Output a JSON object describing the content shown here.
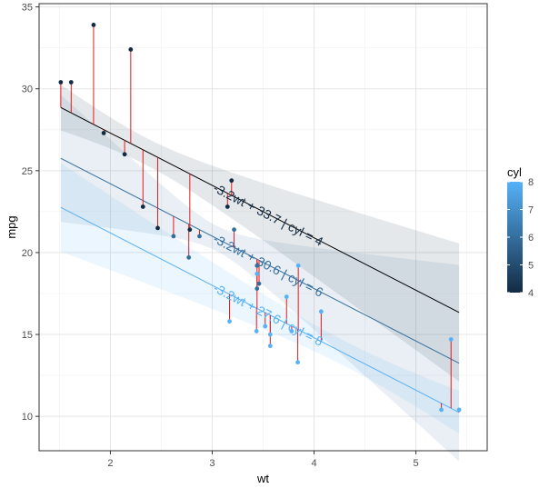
{
  "chart_data": {
    "type": "scatter",
    "title": "",
    "xlabel": "wt",
    "ylabel": "mpg",
    "xlim": [
      1.3,
      5.7
    ],
    "ylim": [
      7.9,
      35.2
    ],
    "x_ticks": [
      2,
      3,
      4,
      5
    ],
    "y_ticks": [
      10,
      15,
      20,
      25,
      30,
      35
    ],
    "grid": true,
    "legend": {
      "title": "cyl",
      "placement": "right",
      "type": "colorbar",
      "range": [
        4,
        8
      ],
      "ticks": [
        4,
        5,
        6,
        7,
        8
      ],
      "color_low": "#132B43",
      "color_high": "#56B1F7"
    },
    "points": [
      {
        "wt": 2.62,
        "mpg": 21.0,
        "cyl": 6
      },
      {
        "wt": 2.875,
        "mpg": 21.0,
        "cyl": 6
      },
      {
        "wt": 2.32,
        "mpg": 22.8,
        "cyl": 4
      },
      {
        "wt": 3.215,
        "mpg": 21.4,
        "cyl": 6
      },
      {
        "wt": 3.44,
        "mpg": 18.7,
        "cyl": 8
      },
      {
        "wt": 3.46,
        "mpg": 18.1,
        "cyl": 6
      },
      {
        "wt": 3.57,
        "mpg": 14.3,
        "cyl": 8
      },
      {
        "wt": 3.19,
        "mpg": 24.4,
        "cyl": 4
      },
      {
        "wt": 3.15,
        "mpg": 22.8,
        "cyl": 4
      },
      {
        "wt": 3.44,
        "mpg": 19.2,
        "cyl": 6
      },
      {
        "wt": 3.44,
        "mpg": 17.8,
        "cyl": 6
      },
      {
        "wt": 4.07,
        "mpg": 16.4,
        "cyl": 8
      },
      {
        "wt": 3.73,
        "mpg": 17.3,
        "cyl": 8
      },
      {
        "wt": 3.78,
        "mpg": 15.2,
        "cyl": 8
      },
      {
        "wt": 5.25,
        "mpg": 10.4,
        "cyl": 8
      },
      {
        "wt": 5.424,
        "mpg": 10.4,
        "cyl": 8
      },
      {
        "wt": 5.345,
        "mpg": 14.7,
        "cyl": 8
      },
      {
        "wt": 2.2,
        "mpg": 32.4,
        "cyl": 4
      },
      {
        "wt": 1.615,
        "mpg": 30.4,
        "cyl": 4
      },
      {
        "wt": 1.835,
        "mpg": 33.9,
        "cyl": 4
      },
      {
        "wt": 2.465,
        "mpg": 21.5,
        "cyl": 4
      },
      {
        "wt": 3.52,
        "mpg": 15.5,
        "cyl": 8
      },
      {
        "wt": 3.435,
        "mpg": 15.2,
        "cyl": 8
      },
      {
        "wt": 3.84,
        "mpg": 13.3,
        "cyl": 8
      },
      {
        "wt": 3.845,
        "mpg": 19.2,
        "cyl": 8
      },
      {
        "wt": 1.935,
        "mpg": 27.3,
        "cyl": 4
      },
      {
        "wt": 2.14,
        "mpg": 26.0,
        "cyl": 4
      },
      {
        "wt": 1.513,
        "mpg": 30.4,
        "cyl": 4
      },
      {
        "wt": 3.17,
        "mpg": 15.8,
        "cyl": 8
      },
      {
        "wt": 2.77,
        "mpg": 19.7,
        "cyl": 6
      },
      {
        "wt": 3.57,
        "mpg": 15.0,
        "cyl": 8
      },
      {
        "wt": 2.78,
        "mpg": 21.4,
        "cyl": 4
      }
    ],
    "fits": [
      {
        "cyl": 4,
        "slope": -3.2,
        "intercept": 33.7,
        "label": "-3.2wt + 33.7 | cyl = 4",
        "band": 1.4,
        "label_wt": 3.0
      },
      {
        "cyl": 6,
        "slope": -3.2,
        "intercept": 30.6,
        "label": "-3.2wt + 30.6 | cyl = 6",
        "band": 1.3,
        "label_wt": 3.0
      },
      {
        "cyl": 8,
        "slope": -3.2,
        "intercept": 27.6,
        "label": "-3.2wt + 27.6 | cyl = 8",
        "band": 1.3,
        "label_wt": 3.0
      }
    ],
    "residual_color": "#e41a1c"
  }
}
